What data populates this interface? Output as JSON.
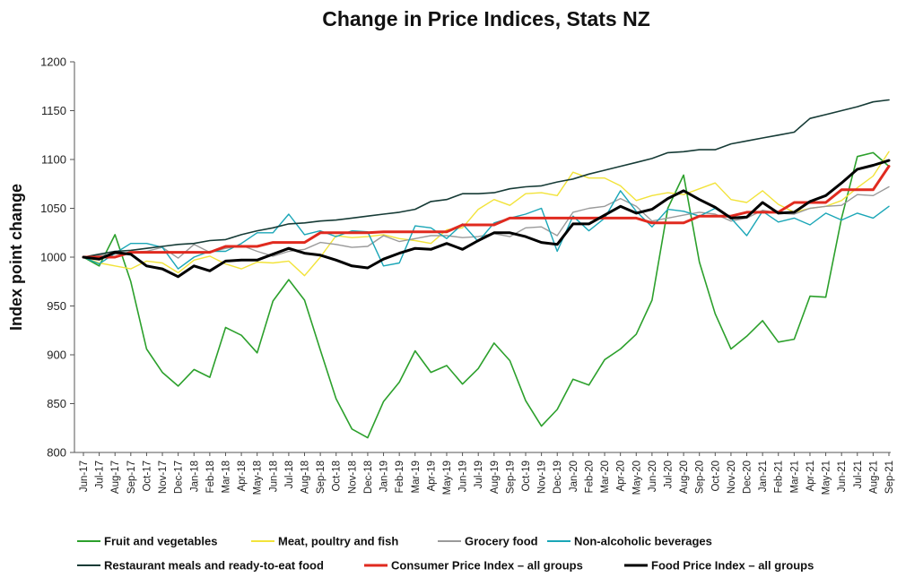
{
  "chart_data": {
    "type": "line",
    "title": "Change in Price Indices, Stats NZ",
    "xlabel": "",
    "ylabel": "Index point change",
    "ylim": [
      800,
      1200
    ],
    "yticks": [
      800,
      850,
      900,
      950,
      1000,
      1050,
      1100,
      1150,
      1200
    ],
    "grid": false,
    "legend_position": "bottom",
    "categories": [
      "Jun-17",
      "Jul-17",
      "Aug-17",
      "Sep-17",
      "Oct-17",
      "Nov-17",
      "Dec-17",
      "Jan-18",
      "Feb-18",
      "Mar-18",
      "Apr-18",
      "May-18",
      "Jun-18",
      "Jul-18",
      "Aug-18",
      "Sep-18",
      "Oct-18",
      "Nov-18",
      "Dec-18",
      "Jan-19",
      "Feb-19",
      "Mar-19",
      "Apr-19",
      "May-19",
      "Jun-19",
      "Jul-19",
      "Aug-19",
      "Sep-19",
      "Oct-19",
      "Nov-19",
      "Dec-19",
      "Jan-20",
      "Feb-20",
      "Mar-20",
      "Apr-20",
      "May-20",
      "Jun-20",
      "Jul-20",
      "Aug-20",
      "Sep-20",
      "Oct-20",
      "Nov-20",
      "Dec-20",
      "Jan-21",
      "Feb-21",
      "Mar-21",
      "Apr-21",
      "May-21",
      "Jun-21",
      "Jul-21",
      "Aug-21",
      "Sep-21"
    ],
    "series": [
      {
        "name": "Fruit and vegetables",
        "color": "#2ca02c",
        "width": 1.6,
        "values": [
          1000,
          991,
          1023,
          975,
          906,
          882,
          868,
          885,
          877,
          928,
          920,
          902,
          955,
          977,
          956,
          905,
          855,
          824,
          815,
          852,
          872,
          904,
          882,
          889,
          870,
          886,
          912,
          894,
          853,
          827,
          844,
          875,
          869,
          895,
          906,
          921,
          956,
          1050,
          1084,
          995,
          942,
          906,
          919,
          935,
          913,
          916,
          960,
          959,
          1040,
          1103,
          1107,
          1093
        ]
      },
      {
        "name": "Meat, poultry and fish",
        "color": "#f2e33a",
        "width": 1.4,
        "values": [
          1000,
          994,
          991,
          988,
          996,
          994,
          984,
          997,
          1001,
          993,
          988,
          995,
          994,
          996,
          981,
          1000,
          1022,
          1020,
          1021,
          1023,
          1019,
          1017,
          1014,
          1028,
          1030,
          1049,
          1059,
          1053,
          1065,
          1066,
          1063,
          1087,
          1081,
          1081,
          1073,
          1058,
          1063,
          1066,
          1064,
          1070,
          1076,
          1059,
          1056,
          1068,
          1054,
          1046,
          1050,
          1052,
          1058,
          1071,
          1083,
          1108
        ]
      },
      {
        "name": "Grocery food",
        "color": "#9a9a9a",
        "width": 1.4,
        "values": [
          1000,
          1002,
          1003,
          1005,
          1006,
          1010,
          999,
          1013,
          1005,
          1009,
          1012,
          1006,
          1001,
          1006,
          1008,
          1015,
          1013,
          1010,
          1011,
          1022,
          1016,
          1019,
          1022,
          1022,
          1020,
          1021,
          1024,
          1021,
          1030,
          1031,
          1022,
          1046,
          1050,
          1052,
          1060,
          1052,
          1037,
          1040,
          1043,
          1046,
          1044,
          1037,
          1040,
          1048,
          1045,
          1044,
          1050,
          1052,
          1053,
          1064,
          1063,
          1072
        ]
      },
      {
        "name": "Non-alcoholic beverages",
        "color": "#1aa6b7",
        "width": 1.4,
        "values": [
          1000,
          993,
          1004,
          1014,
          1014,
          1010,
          988,
          1000,
          1006,
          1006,
          1014,
          1025,
          1025,
          1044,
          1023,
          1027,
          1021,
          1027,
          1026,
          991,
          994,
          1032,
          1030,
          1019,
          1034,
          1016,
          1035,
          1040,
          1044,
          1050,
          1006,
          1042,
          1027,
          1040,
          1068,
          1047,
          1031,
          1049,
          1047,
          1042,
          1050,
          1040,
          1022,
          1047,
          1036,
          1040,
          1033,
          1045,
          1038,
          1045,
          1040,
          1052
        ]
      },
      {
        "name": "Restaurant meals and ready-to-eat food",
        "color": "#163b36",
        "width": 1.6,
        "values": [
          1000,
          1003,
          1006,
          1007,
          1009,
          1011,
          1013,
          1014,
          1017,
          1018,
          1023,
          1027,
          1030,
          1034,
          1035,
          1037,
          1038,
          1040,
          1042,
          1044,
          1046,
          1049,
          1057,
          1059,
          1065,
          1065,
          1066,
          1070,
          1072,
          1073,
          1077,
          1080,
          1085,
          1089,
          1093,
          1097,
          1101,
          1107,
          1108,
          1110,
          1110,
          1116,
          1119,
          1122,
          1125,
          1128,
          1142,
          1146,
          1150,
          1154,
          1159,
          1161
        ]
      },
      {
        "name": "Consumer Price Index – all groups",
        "color": "#e02a1f",
        "width": 3,
        "values": [
          1000,
          1000,
          1000,
          1005,
          1005,
          1005,
          1005,
          1005,
          1005,
          1011,
          1011,
          1011,
          1015,
          1015,
          1015,
          1025,
          1025,
          1025,
          1025,
          1026,
          1026,
          1026,
          1026,
          1026,
          1033,
          1033,
          1033,
          1040,
          1040,
          1040,
          1040,
          1040,
          1040,
          1040,
          1040,
          1040,
          1035,
          1035,
          1035,
          1042,
          1042,
          1042,
          1046,
          1046,
          1046,
          1056,
          1056,
          1056,
          1069,
          1069,
          1069,
          1093
        ]
      },
      {
        "name": "Food Price Index – all groups",
        "color": "#000000",
        "width": 3,
        "values": [
          1000,
          998,
          1005,
          1003,
          991,
          988,
          980,
          991,
          986,
          996,
          997,
          997,
          1003,
          1009,
          1004,
          1002,
          997,
          991,
          989,
          998,
          1004,
          1009,
          1008,
          1014,
          1008,
          1017,
          1025,
          1025,
          1021,
          1015,
          1013,
          1034,
          1034,
          1043,
          1052,
          1045,
          1049,
          1060,
          1068,
          1059,
          1051,
          1040,
          1041,
          1056,
          1045,
          1046,
          1057,
          1063,
          1076,
          1090,
          1094,
          1099
        ]
      }
    ]
  }
}
